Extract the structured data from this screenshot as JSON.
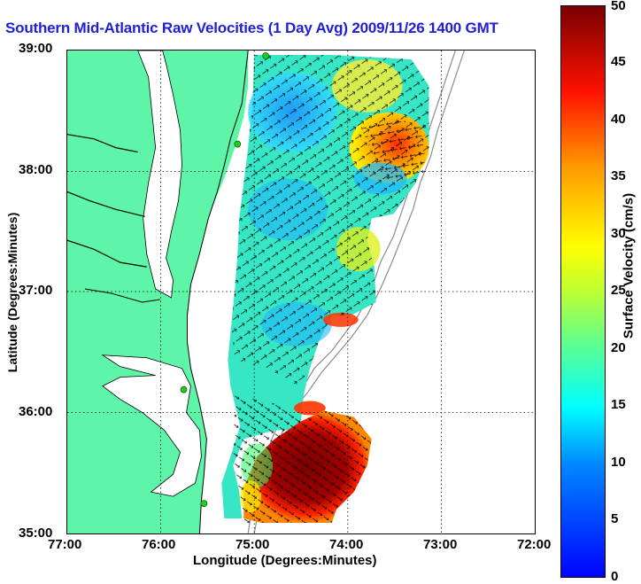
{
  "title": "Southern Mid-Atlantic Raw Velocities (1 Day Avg) 2009/11/26 1400 GMT",
  "axes": {
    "xlabel": "Longitude (Degrees:Minutes)",
    "ylabel": "Latitude (Degrees:Minutes)",
    "x_ticks": [
      "77:00",
      "76:00",
      "75:00",
      "74:00",
      "73:00",
      "72:00"
    ],
    "y_ticks": [
      "39:00",
      "38:00",
      "37:00",
      "36:00",
      "35:00"
    ],
    "x_range": [
      -77,
      -72
    ],
    "y_range": [
      35,
      39
    ]
  },
  "colorbar": {
    "label": "Surface Velocity (cm/s)",
    "ticks": [
      "50",
      "45",
      "40",
      "35",
      "30",
      "25",
      "20",
      "15",
      "10",
      "5",
      "0"
    ],
    "range": [
      0,
      50
    ],
    "colors": [
      "#0000ff",
      "#00ffff",
      "#ffff00",
      "#ff0000",
      "#800000"
    ]
  },
  "map_colors": {
    "land": "#5ef5a9",
    "ocean": "#ffffff",
    "coastline": "#000000",
    "bathymetry": "#8c8c8c",
    "station": "#22cc22"
  }
}
